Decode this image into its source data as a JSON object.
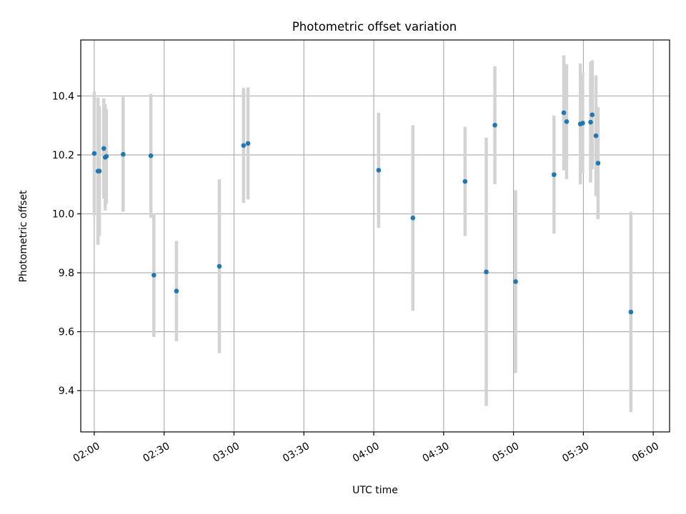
{
  "chart_data": {
    "type": "scatter",
    "title": "Photometric offset variation",
    "xlabel": "UTC time",
    "ylabel": "Photometric offset",
    "x_unit": "minutes after 02:00 UTC",
    "xlim": [
      -5.8,
      247
    ],
    "ylim": [
      9.26,
      10.59
    ],
    "grid": true,
    "x_ticks": [
      {
        "value": 0,
        "label": "02:00"
      },
      {
        "value": 30,
        "label": "02:30"
      },
      {
        "value": 60,
        "label": "03:00"
      },
      {
        "value": 90,
        "label": "03:30"
      },
      {
        "value": 120,
        "label": "04:00"
      },
      {
        "value": 150,
        "label": "04:30"
      },
      {
        "value": 180,
        "label": "05:00"
      },
      {
        "value": 210,
        "label": "05:30"
      },
      {
        "value": 240,
        "label": "06:00"
      }
    ],
    "y_ticks": [
      {
        "value": 9.4,
        "label": "9.4"
      },
      {
        "value": 9.6,
        "label": "9.6"
      },
      {
        "value": 9.8,
        "label": "9.8"
      },
      {
        "value": 10.0,
        "label": "10.0"
      },
      {
        "value": 10.2,
        "label": "10.2"
      },
      {
        "value": 10.4,
        "label": "10.4"
      }
    ],
    "series": [
      {
        "name": "offset",
        "color": "#1f77b4",
        "errorbar_color": "#d3d3d3",
        "points": [
          {
            "x": 0.0,
            "y": 10.205,
            "err": 0.21
          },
          {
            "x": 1.6,
            "y": 10.145,
            "err": 0.25
          },
          {
            "x": 2.2,
            "y": 10.145,
            "err": 0.22
          },
          {
            "x": 4.1,
            "y": 10.222,
            "err": 0.17
          },
          {
            "x": 4.7,
            "y": 10.192,
            "err": 0.18
          },
          {
            "x": 5.2,
            "y": 10.195,
            "err": 0.16
          },
          {
            "x": 12.4,
            "y": 10.202,
            "err": 0.195
          },
          {
            "x": 24.3,
            "y": 10.197,
            "err": 0.21
          },
          {
            "x": 25.6,
            "y": 9.792,
            "err": 0.21
          },
          {
            "x": 35.3,
            "y": 9.738,
            "err": 0.17
          },
          {
            "x": 53.7,
            "y": 9.822,
            "err": 0.295
          },
          {
            "x": 64.1,
            "y": 10.232,
            "err": 0.195
          },
          {
            "x": 66.0,
            "y": 10.239,
            "err": 0.19
          },
          {
            "x": 122.1,
            "y": 10.148,
            "err": 0.195
          },
          {
            "x": 136.8,
            "y": 9.986,
            "err": 0.315
          },
          {
            "x": 159.2,
            "y": 10.11,
            "err": 0.185
          },
          {
            "x": 168.3,
            "y": 9.803,
            "err": 0.455
          },
          {
            "x": 172.0,
            "y": 10.301,
            "err": 0.2
          },
          {
            "x": 180.9,
            "y": 9.77,
            "err": 0.31
          },
          {
            "x": 197.4,
            "y": 10.133,
            "err": 0.2
          },
          {
            "x": 201.6,
            "y": 10.343,
            "err": 0.195
          },
          {
            "x": 202.8,
            "y": 10.313,
            "err": 0.195
          },
          {
            "x": 208.7,
            "y": 10.305,
            "err": 0.205
          },
          {
            "x": 209.7,
            "y": 10.308,
            "err": 0.17
          },
          {
            "x": 213.1,
            "y": 10.311,
            "err": 0.205
          },
          {
            "x": 213.8,
            "y": 10.336,
            "err": 0.185
          },
          {
            "x": 215.4,
            "y": 10.265,
            "err": 0.205
          },
          {
            "x": 216.3,
            "y": 10.172,
            "err": 0.19
          },
          {
            "x": 230.4,
            "y": 9.667,
            "err": 0.34
          }
        ]
      }
    ]
  }
}
